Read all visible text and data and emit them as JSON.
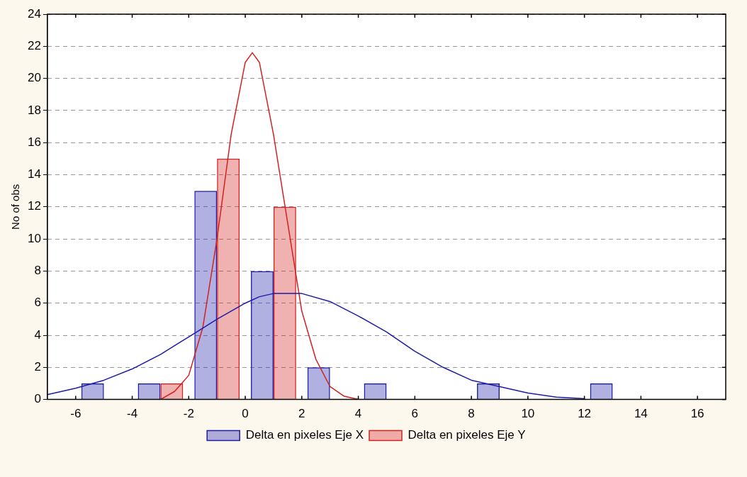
{
  "chart_data": {
    "type": "bar",
    "ylabel": "No of obs",
    "x": [
      -5,
      -3,
      -1,
      1,
      3,
      5,
      7,
      9,
      11,
      13,
      15
    ],
    "series": [
      {
        "name": "Delta en pixeles Eje X",
        "color": "#1c1ca8",
        "values": [
          1,
          1,
          13,
          8,
          2,
          1,
          0,
          1,
          0,
          1,
          0
        ]
      },
      {
        "name": "Delta en pixeles Eje Y",
        "color": "#d42020",
        "values": [
          0,
          1,
          15,
          12,
          0,
          0,
          0,
          0,
          0,
          0,
          0
        ]
      },
      {
        "type": "line",
        "color": "#1c1ca8",
        "x": [
          -7,
          -6,
          -5,
          -4,
          -3,
          -2,
          -1,
          0,
          0.5,
          1,
          2,
          3,
          4,
          5,
          6,
          7,
          8,
          9,
          10,
          11,
          12
        ],
        "values": [
          0.3,
          0.7,
          1.2,
          1.9,
          2.8,
          3.9,
          5.0,
          6.0,
          6.4,
          6.6,
          6.6,
          6.1,
          5.2,
          4.2,
          3.0,
          2.0,
          1.2,
          0.8,
          0.4,
          0.15,
          0.05
        ]
      },
      {
        "type": "line",
        "color": "#d42020",
        "x": [
          -3,
          -2.5,
          -2,
          -1.5,
          -1,
          -0.5,
          0,
          0.25,
          0.5,
          1,
          1.5,
          2,
          2.5,
          3,
          3.5,
          4
        ],
        "values": [
          0,
          0.5,
          1.5,
          4.5,
          10,
          16.5,
          21,
          21.6,
          21,
          16.5,
          11,
          5.5,
          2.5,
          0.8,
          0.2,
          0
        ]
      }
    ],
    "xlim": [
      -7,
      17
    ],
    "xticks": [
      -6,
      -4,
      -2,
      0,
      2,
      4,
      6,
      8,
      10,
      12,
      14,
      16
    ],
    "ylim": [
      0,
      24
    ],
    "yticks": [
      0,
      2,
      4,
      6,
      8,
      10,
      12,
      14,
      16,
      18,
      20,
      22,
      24
    ],
    "grid": "y",
    "legend": "bottom"
  }
}
